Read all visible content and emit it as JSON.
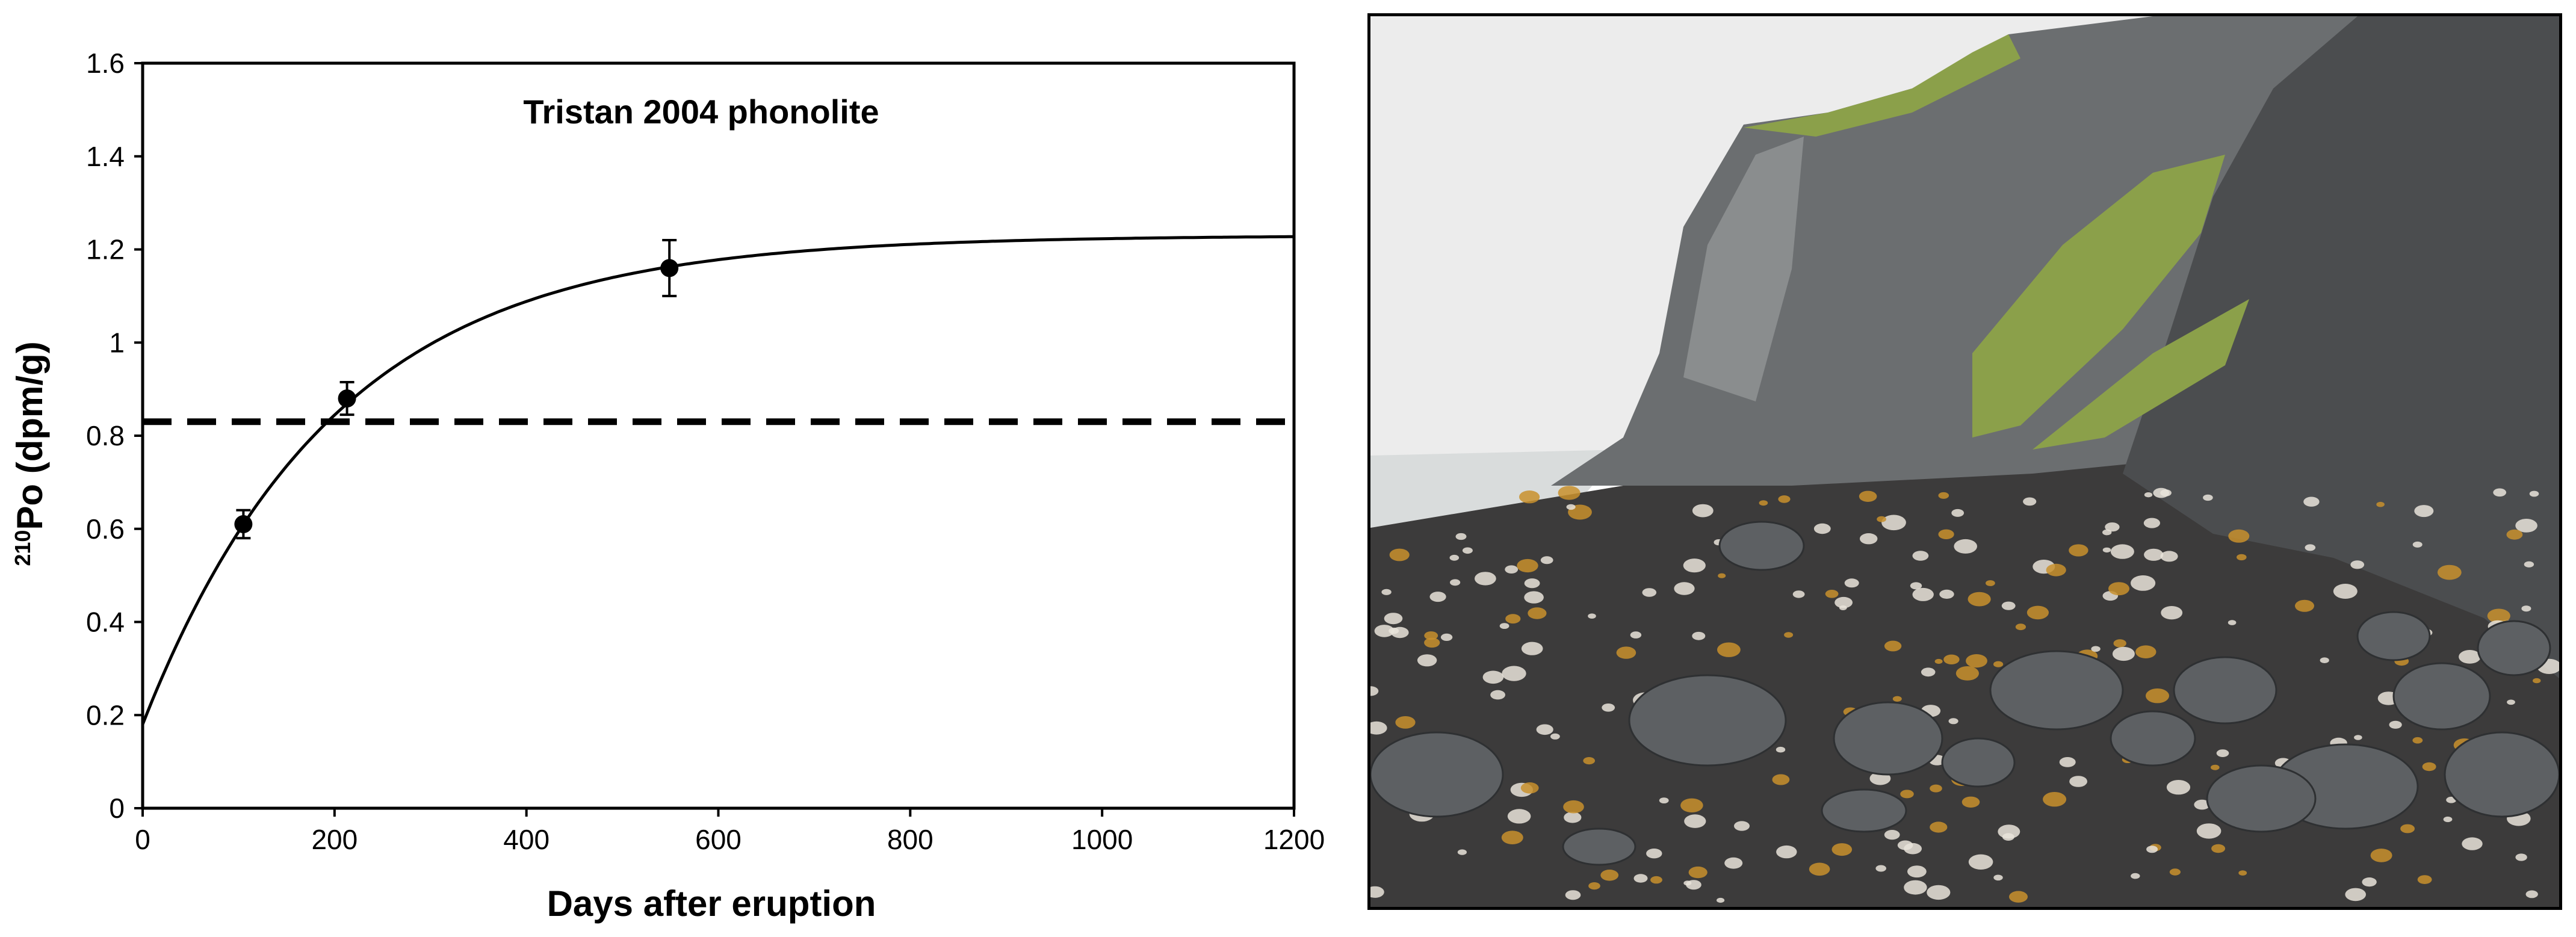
{
  "chart_data": {
    "type": "scatter",
    "title": "Tristan 2004 phonolite",
    "xlabel": "Days after eruption",
    "ylabel_sup": "210",
    "ylabel_main": "Po (dpm/g)",
    "xlim": [
      0,
      1200
    ],
    "ylim": [
      0,
      1.6
    ],
    "x_ticks": [
      0,
      200,
      400,
      600,
      800,
      1000,
      1200
    ],
    "y_ticks": [
      0,
      0.2,
      0.4,
      0.6,
      0.8,
      1,
      1.2,
      1.4,
      1.6
    ],
    "grid": false,
    "series": [
      {
        "kind": "points_with_error",
        "points": [
          {
            "x": 105,
            "y": 0.61,
            "err": 0.03
          },
          {
            "x": 213,
            "y": 0.88,
            "err": 0.035
          },
          {
            "x": 549,
            "y": 1.16,
            "err": 0.06
          }
        ]
      },
      {
        "kind": "fit_curve",
        "y0": 0.18,
        "y_inf": 1.23,
        "half_life_days": 138.4
      },
      {
        "kind": "reference_line",
        "y": 0.83
      }
    ]
  },
  "photo": {
    "colors": {
      "sky": "#ececec",
      "sea": "#d9dcdc",
      "sand": "#3c3b3b",
      "cliff_dark": "#4b4d4f",
      "cliff_mid": "#6b6e70",
      "cliff_light": "#8a8d8e",
      "grass": "#8ba04a",
      "boulder": "#5d6063",
      "debris_white": "#e9e4da",
      "kelp": "#c8902d"
    }
  }
}
